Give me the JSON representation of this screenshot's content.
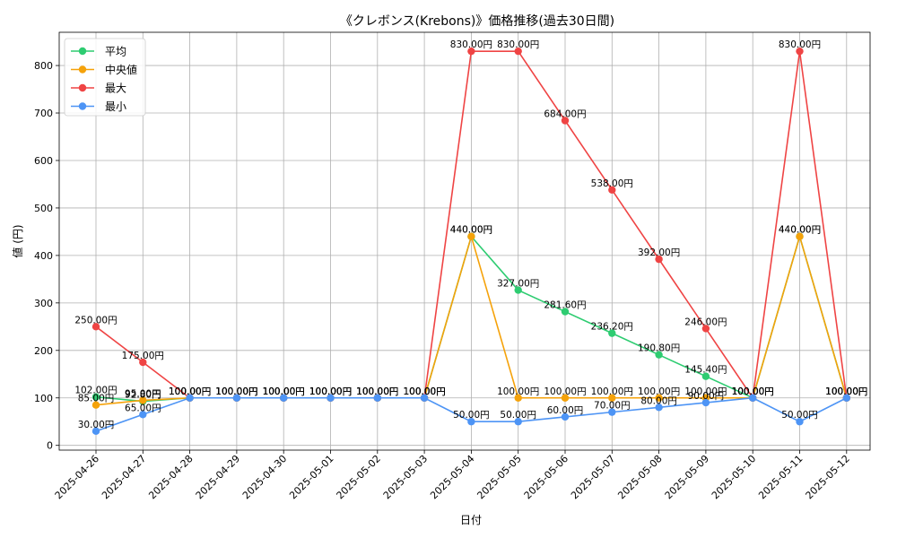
{
  "chart_data": {
    "type": "line",
    "title": "《クレボンス(Krebons)》価格推移(過去30日間)",
    "xlabel": "日付",
    "ylabel": "値 (円)",
    "ylim": [
      -10,
      870
    ],
    "yticks": [
      0,
      100,
      200,
      300,
      400,
      500,
      600,
      700,
      800
    ],
    "grid": true,
    "legend_position": "top-left",
    "label_suffix": "円",
    "categories": [
      "2025-04-26",
      "2025-04-27",
      "2025-04-28",
      "2025-04-29",
      "2025-04-30",
      "2025-05-01",
      "2025-05-02",
      "2025-05-03",
      "2025-05-04",
      "2025-05-05",
      "2025-05-06",
      "2025-05-07",
      "2025-05-08",
      "2025-05-09",
      "2025-05-10",
      "2025-05-11",
      "2025-05-12"
    ],
    "series": [
      {
        "name": "平均",
        "color": "#2ecc71",
        "values": [
          102.0,
          92.8,
          100.0,
          100.0,
          100.0,
          100.0,
          100.0,
          100.0,
          440.0,
          327.0,
          281.6,
          236.2,
          190.8,
          145.4,
          100.0,
          440.0,
          100.0
        ]
      },
      {
        "name": "中央値",
        "color": "#f5a20a",
        "values": [
          85.0,
          95.0,
          100.0,
          100.0,
          100.0,
          100.0,
          100.0,
          100.0,
          440.0,
          100.0,
          100.0,
          100.0,
          100.0,
          100.0,
          100.0,
          440.0,
          100.0
        ]
      },
      {
        "name": "最大",
        "color": "#ef4444",
        "values": [
          250.0,
          175.0,
          100.0,
          100.0,
          100.0,
          100.0,
          100.0,
          100.0,
          830.0,
          830.0,
          684.0,
          538.0,
          392.0,
          246.0,
          100.0,
          830.0,
          100.0
        ]
      },
      {
        "name": "最小",
        "color": "#4d94f5",
        "values": [
          30.0,
          65.0,
          100.0,
          100.0,
          100.0,
          100.0,
          100.0,
          100.0,
          50.0,
          50.0,
          60.0,
          70.0,
          80.0,
          90.0,
          100.0,
          50.0,
          100.0
        ]
      }
    ]
  }
}
